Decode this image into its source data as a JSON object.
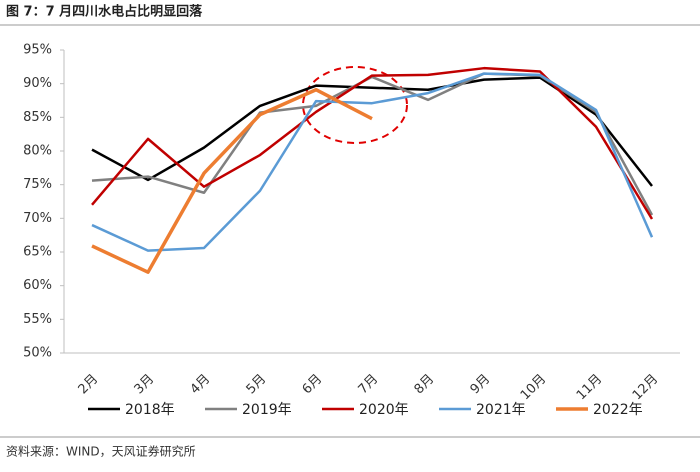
{
  "chart_data": {
    "type": "line",
    "title": "图 7：7 月四川水电占比明显回落",
    "source": "资料来源：WIND，天风证券研究所",
    "categories": [
      "2月",
      "3月",
      "4月",
      "5月",
      "6月",
      "7月",
      "8月",
      "9月",
      "10月",
      "11月",
      "12月"
    ],
    "series": [
      {
        "name": "2018年",
        "color": "#000000",
        "values": [
          80.2,
          75.7,
          80.5,
          86.7,
          89.7,
          89.4,
          89.1,
          90.6,
          90.9,
          85.4,
          74.8
        ]
      },
      {
        "name": "2019年",
        "color": "#808080",
        "values": [
          75.6,
          76.2,
          73.8,
          85.7,
          86.7,
          91.0,
          87.6,
          91.5,
          91.2,
          85.8,
          70.5
        ]
      },
      {
        "name": "2020年",
        "color": "#c00000",
        "values": [
          72.0,
          81.8,
          74.7,
          79.4,
          85.8,
          91.2,
          91.3,
          92.3,
          91.8,
          83.6,
          69.9
        ]
      },
      {
        "name": "2021年",
        "color": "#5b9bd5",
        "values": [
          69.0,
          65.2,
          65.6,
          74.1,
          87.4,
          87.1,
          88.6,
          91.5,
          91.3,
          86.1,
          67.2
        ]
      },
      {
        "name": "2022年",
        "color": "#ed7d31",
        "values": [
          65.9,
          62.0,
          76.7,
          85.4,
          89.1,
          84.8,
          null,
          null,
          null,
          null,
          null
        ]
      }
    ],
    "ylim": [
      50,
      95
    ],
    "yticks": [
      {
        "value": 50,
        "label": "50%"
      },
      {
        "value": 55,
        "label": "55%"
      },
      {
        "value": 60,
        "label": "60%"
      },
      {
        "value": 65,
        "label": "65%"
      },
      {
        "value": 70,
        "label": "70%"
      },
      {
        "value": 75,
        "label": "75%"
      },
      {
        "value": 80,
        "label": "80%"
      },
      {
        "value": 85,
        "label": "85%"
      },
      {
        "value": 90,
        "label": "90%"
      },
      {
        "value": 95,
        "label": "95%"
      }
    ],
    "grid": false,
    "legend": "bottom"
  }
}
